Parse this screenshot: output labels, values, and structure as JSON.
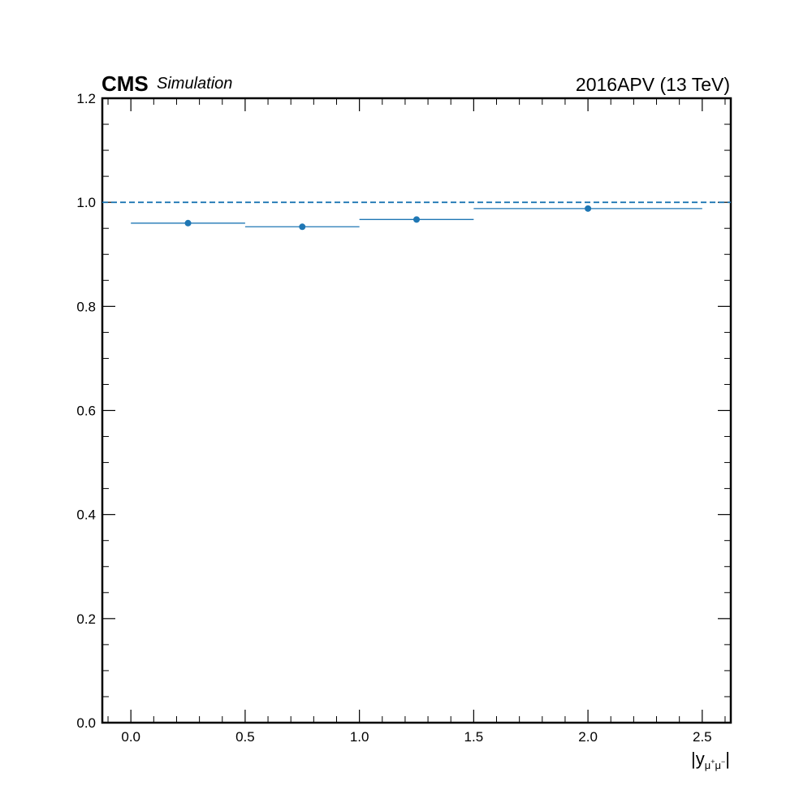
{
  "header": {
    "experiment": "CMS",
    "tag": "Simulation",
    "lumi_label": "2016APV (13 TeV)"
  },
  "colors": {
    "series": "#1f77b4",
    "axis": "#000000"
  },
  "chart_data": {
    "type": "scatter",
    "title": "",
    "xlabel_parts": {
      "base": "|y",
      "sub_mu1": "μ",
      "sup_plus": "+",
      "sub_mu2": "μ",
      "sup_minus": "−",
      "end": "|"
    },
    "ylabel": "",
    "xlim": [
      -0.125,
      2.625
    ],
    "ylim": [
      0.0,
      1.2
    ],
    "x_ticks": [
      0.0,
      0.5,
      1.0,
      1.5,
      2.0,
      2.5
    ],
    "x_tick_labels": [
      "0.0",
      "0.5",
      "1.0",
      "1.5",
      "2.0",
      "2.5"
    ],
    "y_ticks": [
      0.0,
      0.2,
      0.4,
      0.6,
      0.8,
      1.0,
      1.2
    ],
    "y_tick_labels": [
      "0.0",
      "0.2",
      "0.4",
      "0.6",
      "0.8",
      "1.0",
      "1.2"
    ],
    "grid": false,
    "reference_line": {
      "y": 1.0,
      "style": "dashed"
    },
    "series": [
      {
        "points": [
          {
            "x": 0.25,
            "x_low": 0.0,
            "x_high": 0.5,
            "y": 0.96
          },
          {
            "x": 0.75,
            "x_low": 0.5,
            "x_high": 1.0,
            "y": 0.953
          },
          {
            "x": 1.25,
            "x_low": 1.0,
            "x_high": 1.5,
            "y": 0.967
          },
          {
            "x": 2.0,
            "x_low": 1.5,
            "x_high": 2.5,
            "y": 0.988
          }
        ]
      }
    ]
  }
}
